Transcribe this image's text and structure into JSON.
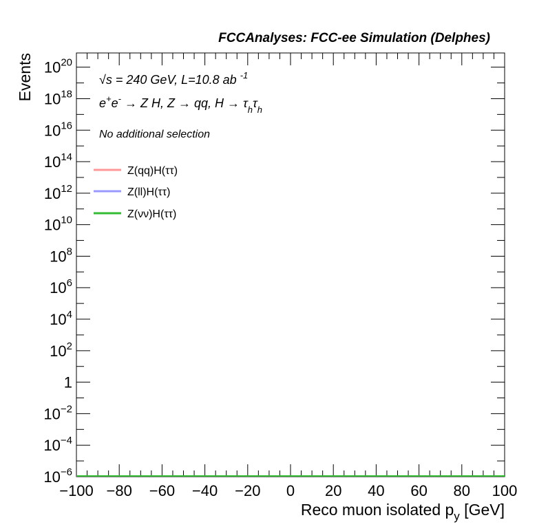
{
  "chart_data": {
    "type": "histogram",
    "title": "FCCAnalyses: FCC-ee Simulation (Delphes)",
    "x_label": "Reco muon isolated p",
    "x_label_sub": "y",
    "x_label_unit": " [GeV]",
    "y_label": "Events",
    "annotations": [
      [
        {
          "t": "√s = 240 GeV, L=10.8 ab "
        },
        {
          "t": "-1",
          "pos": "sup"
        }
      ],
      [
        {
          "t": "e"
        },
        {
          "t": "+",
          "pos": "sup"
        },
        {
          "t": "e"
        },
        {
          "t": "-",
          "pos": "sup"
        },
        {
          "t": " → Z H, Z  → qq, H  → τ"
        },
        {
          "t": "h",
          "pos": "sub"
        },
        {
          "t": "τ"
        },
        {
          "t": "h",
          "pos": "sub"
        }
      ],
      [
        {
          "t": "No additional selection"
        }
      ]
    ],
    "bins": [
      -100,
      100
    ],
    "series": [
      {
        "name": "Z(qq)H(ττ)",
        "color": "#ff9999",
        "values": [
          0
        ]
      },
      {
        "name": "Z(ll)H(ττ)",
        "color": "#9999ff",
        "values": [
          0
        ]
      },
      {
        "name": "Z(νν)H(ττ)",
        "color": "#33bb33",
        "values": [
          0
        ]
      }
    ],
    "xlim": [
      -100,
      100
    ],
    "xticks": [
      {
        "value": -100,
        "label": "−100"
      },
      {
        "value": -80,
        "label": "−80"
      },
      {
        "value": -60,
        "label": "−60"
      },
      {
        "value": -40,
        "label": "−40"
      },
      {
        "value": -20,
        "label": "−20"
      },
      0,
      20,
      40,
      60,
      80,
      100
    ],
    "ylim": [
      1e-06,
      8e+20
    ],
    "y_log": true,
    "yticks": [
      {
        "value": 1e-06,
        "label": "10",
        "sup": "−6"
      },
      {
        "value": 0.0001,
        "label": "10",
        "sup": "−4"
      },
      {
        "value": 0.01,
        "label": "10",
        "sup": "−2"
      },
      1,
      {
        "value": 100,
        "label": "10",
        "sup": "2"
      },
      {
        "value": 10000.0,
        "label": "10",
        "sup": "4"
      },
      {
        "value": 1000000.0,
        "label": "10",
        "sup": "6"
      },
      {
        "value": 100000000.0,
        "label": "10",
        "sup": "8"
      },
      {
        "value": 10000000000.0,
        "label": "10",
        "sup": "10"
      },
      {
        "value": 1000000000000.0,
        "label": "10",
        "sup": "12"
      },
      {
        "value": 100000000000000.0,
        "label": "10",
        "sup": "14"
      },
      {
        "value": 1e+16,
        "label": "10",
        "sup": "16"
      },
      {
        "value": 1e+18,
        "label": "10",
        "sup": "18"
      },
      {
        "value": 1e+20,
        "label": "10",
        "sup": "20"
      }
    ]
  }
}
